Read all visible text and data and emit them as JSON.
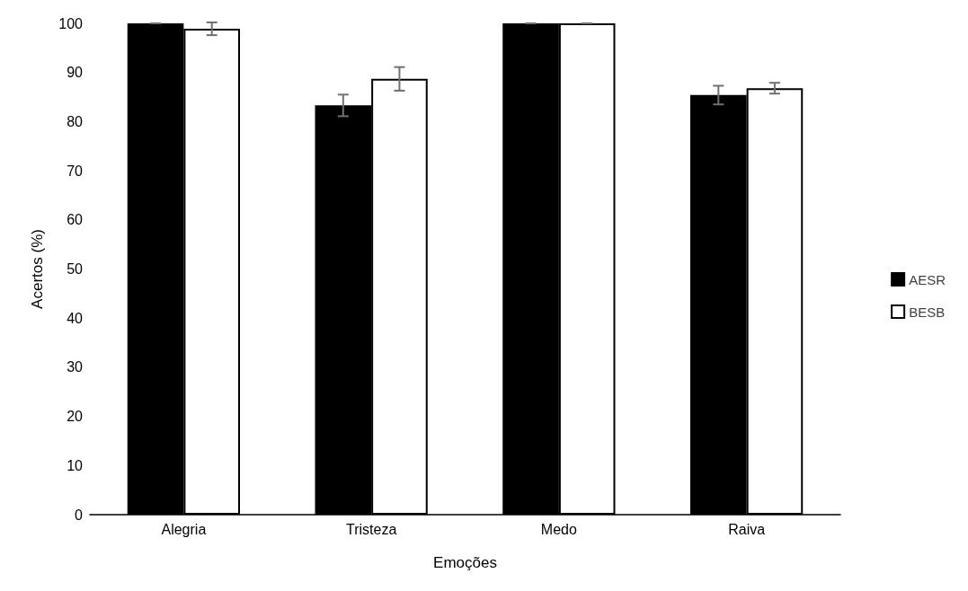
{
  "chart_data": {
    "type": "bar",
    "xlabel": "Emoções",
    "ylabel": "Acertos (%)",
    "categories": [
      "Alegria",
      "Tristeza",
      "Medo",
      "Raiva"
    ],
    "series": [
      {
        "name": "AESR",
        "color": "#000000",
        "values": [
          100,
          83.3,
          100,
          85.4
        ],
        "errors": [
          0,
          2.2,
          0,
          1.9
        ]
      },
      {
        "name": "BESB",
        "color": "#ffffff",
        "values": [
          98.9,
          88.7,
          100,
          86.8
        ],
        "errors": [
          1.3,
          2.4,
          0,
          1.1
        ]
      }
    ],
    "ylim": [
      0,
      100
    ],
    "yticks": [
      0,
      10,
      20,
      30,
      40,
      50,
      60,
      70,
      80,
      90,
      100
    ],
    "grid": false,
    "legend": "right"
  }
}
